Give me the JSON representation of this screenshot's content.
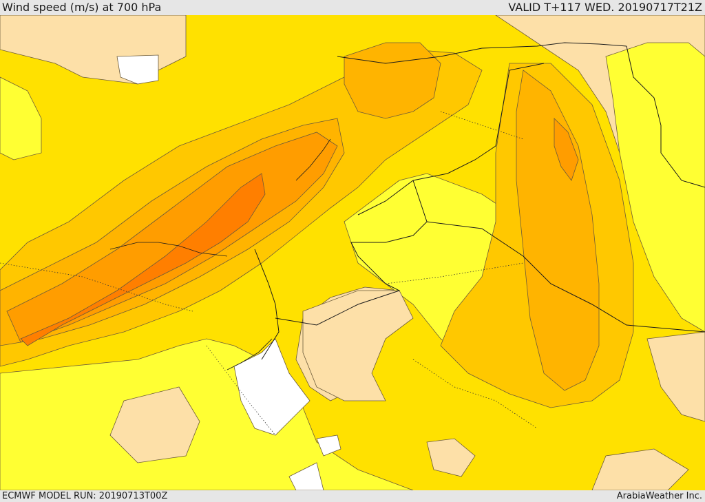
{
  "header": {
    "title": "Wind speed (m/s) at 700 hPa",
    "valid": "VALID T+117 WED. 20190717T21Z"
  },
  "footer": {
    "run": "ECMWF MODEL RUN: 20190713T00Z",
    "credit": "ArabiaWeather Inc."
  },
  "palette": {
    "calm": "#ffffff",
    "light": "#fde0a8",
    "low": "#ffff33",
    "mid": "#ffe100",
    "high": "#ffc800",
    "higher": "#ffb400",
    "strong": "#ff9d00",
    "max": "#ff7f00"
  }
}
